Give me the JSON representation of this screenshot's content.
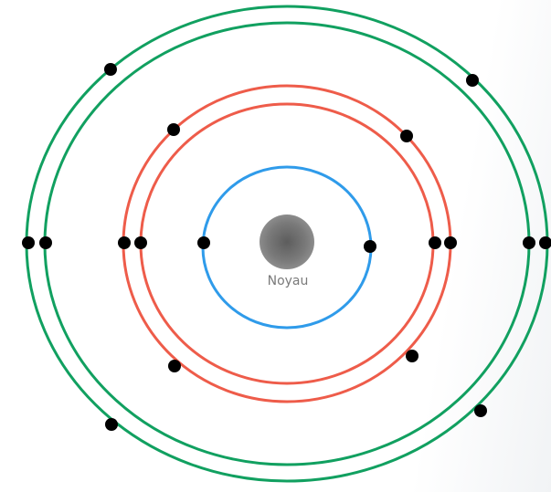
{
  "nucleus": {
    "label": "Noyau",
    "color": "#6f6f6f"
  },
  "shells": [
    {
      "name": "shell-1",
      "color": "#2f9bea",
      "electrons": 2
    },
    {
      "name": "shell-2",
      "color": "#ee5c4a",
      "electrons": 8
    },
    {
      "name": "shell-3",
      "color": "#11a060",
      "electrons": 8
    }
  ],
  "electron_color": "#000000"
}
